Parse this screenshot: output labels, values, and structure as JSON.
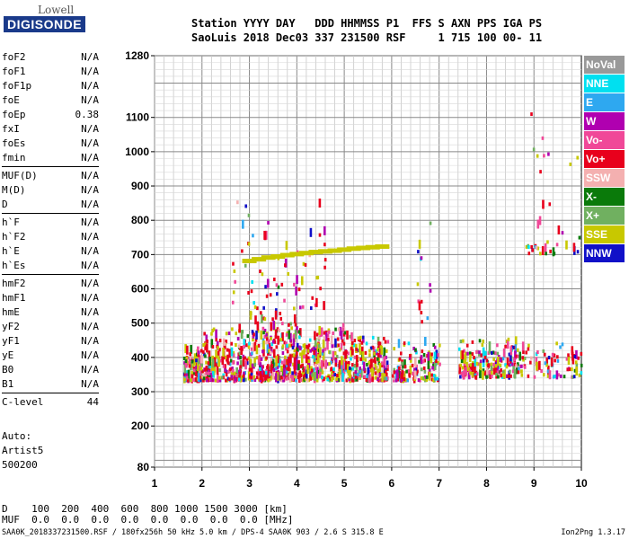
{
  "logo": {
    "line1": "Lowell",
    "line2": "DIGISONDE"
  },
  "header": {
    "line1": "Station YYYY DAY   DDD HHMMSS P1  FFS S AXN PPS IGA PS",
    "line2": "SaoLuis 2018 Dec03 337 231500 RSF     1 715 100 00- 11"
  },
  "params": [
    [
      {
        "name": "foF2",
        "value": "N/A"
      },
      {
        "name": "foF1",
        "value": "N/A"
      },
      {
        "name": "foF1p",
        "value": "N/A"
      },
      {
        "name": "foE",
        "value": "N/A"
      },
      {
        "name": "foEp",
        "value": "0.38"
      },
      {
        "name": "fxI",
        "value": "N/A"
      },
      {
        "name": "foEs",
        "value": "N/A"
      },
      {
        "name": "fmin",
        "value": "N/A"
      }
    ],
    [
      {
        "name": "MUF(D)",
        "value": "N/A"
      },
      {
        "name": "M(D)",
        "value": "N/A"
      },
      {
        "name": "D",
        "value": "N/A"
      }
    ],
    [
      {
        "name": "h`F",
        "value": "N/A"
      },
      {
        "name": "h`F2",
        "value": "N/A"
      },
      {
        "name": "h`E",
        "value": "N/A"
      },
      {
        "name": "h`Es",
        "value": "N/A"
      }
    ],
    [
      {
        "name": "hmF2",
        "value": "N/A"
      },
      {
        "name": "hmF1",
        "value": "N/A"
      },
      {
        "name": "hmE",
        "value": "N/A"
      },
      {
        "name": "yF2",
        "value": "N/A"
      },
      {
        "name": "yF1",
        "value": "N/A"
      },
      {
        "name": "yE",
        "value": "N/A"
      },
      {
        "name": "B0",
        "value": "N/A"
      },
      {
        "name": "B1",
        "value": "N/A"
      }
    ],
    [
      {
        "name": "C-level",
        "value": "44"
      }
    ]
  ],
  "auto": {
    "l1": "Auto:",
    "l2": "Artist5",
    "l3": "500200"
  },
  "bottom": {
    "d_row": "D    100  200  400  600  800 1000 1500 3000 [km]",
    "muf_row": "MUF  0.0  0.0  0.0  0.0  0.0  0.0  0.0  0.0 [MHz]"
  },
  "footer": {
    "left": "SAA0K_2018337231500.RSF / 180fx256h 50 kHz 5.0 km / DPS-4 SAA0K 903 / 2.6 S 315.8 E",
    "right": "Ion2Png 1.3.17"
  },
  "legend": [
    {
      "label": "NoVal",
      "color": "#999999"
    },
    {
      "label": "NNE",
      "color": "#00e0f0"
    },
    {
      "label": "E",
      "color": "#2ea8f0"
    },
    {
      "label": "W",
      "color": "#b000b0"
    },
    {
      "label": "Vo-",
      "color": "#f04898"
    },
    {
      "label": "Vo+",
      "color": "#e8001c"
    },
    {
      "label": "SSW",
      "color": "#f4b0b0"
    },
    {
      "label": "X-",
      "color": "#0a7a0a"
    },
    {
      "label": "X+",
      "color": "#70b060"
    },
    {
      "label": "SSE",
      "color": "#c8c800"
    },
    {
      "label": "NNW",
      "color": "#1010c8"
    }
  ],
  "chart_data": {
    "type": "scatter",
    "xlim": [
      1,
      10
    ],
    "ylim": [
      80,
      1280
    ],
    "x_ticks": [
      "1",
      "2",
      "3",
      "4",
      "5",
      "6",
      "7",
      "8",
      "9",
      "10"
    ],
    "y_ticks": [
      {
        "v": 80,
        "label": "80"
      },
      {
        "v": 200,
        "label": "200"
      },
      {
        "v": 300,
        "label": "300"
      },
      {
        "v": 400,
        "label": "400"
      },
      {
        "v": 500,
        "label": "500"
      },
      {
        "v": 600,
        "label": "600"
      },
      {
        "v": 700,
        "label": "700"
      },
      {
        "v": 800,
        "label": "800"
      },
      {
        "v": 900,
        "label": "900"
      },
      {
        "v": 1000,
        "label": "1000"
      },
      {
        "v": 1100,
        "label": "1100"
      },
      {
        "v": 1280,
        "label": "1280"
      }
    ],
    "grid": true,
    "traces": [
      {
        "name": "F-trace",
        "x": [
          3.0,
          3.2,
          3.4,
          3.6,
          3.8,
          4.0,
          4.2,
          4.4,
          4.6,
          4.8,
          5.0,
          5.2,
          5.4,
          5.6,
          5.8
        ],
        "y": [
          680,
          685,
          690,
          693,
          697,
          700,
          703,
          706,
          708,
          710,
          713,
          716,
          718,
          720,
          722
        ],
        "color": "#c8c800"
      }
    ],
    "clusters": [
      {
        "x": [
          1.6,
          2.0
        ],
        "y": [
          330,
          420
        ],
        "n": 110
      },
      {
        "x": [
          2.0,
          3.0
        ],
        "y": [
          330,
          480
        ],
        "n": 210
      },
      {
        "x": [
          3.0,
          4.0
        ],
        "y": [
          330,
          530
        ],
        "n": 280
      },
      {
        "x": [
          4.0,
          5.0
        ],
        "y": [
          330,
          480
        ],
        "n": 260
      },
      {
        "x": [
          5.0,
          5.9
        ],
        "y": [
          330,
          460
        ],
        "n": 200
      },
      {
        "x": [
          6.0,
          7.0
        ],
        "y": [
          330,
          440
        ],
        "n": 140
      },
      {
        "x": [
          7.4,
          8.8
        ],
        "y": [
          340,
          450
        ],
        "n": 220
      },
      {
        "x": [
          8.8,
          10.0
        ],
        "y": [
          340,
          440
        ],
        "n": 70
      },
      {
        "x": [
          2.6,
          4.6
        ],
        "y": [
          540,
          850
        ],
        "n": 70
      },
      {
        "x": [
          8.8,
          10.0
        ],
        "y": [
          700,
          1120
        ],
        "n": 40
      },
      {
        "x": [
          6.5,
          6.8
        ],
        "y": [
          500,
          800
        ],
        "n": 14
      }
    ]
  }
}
